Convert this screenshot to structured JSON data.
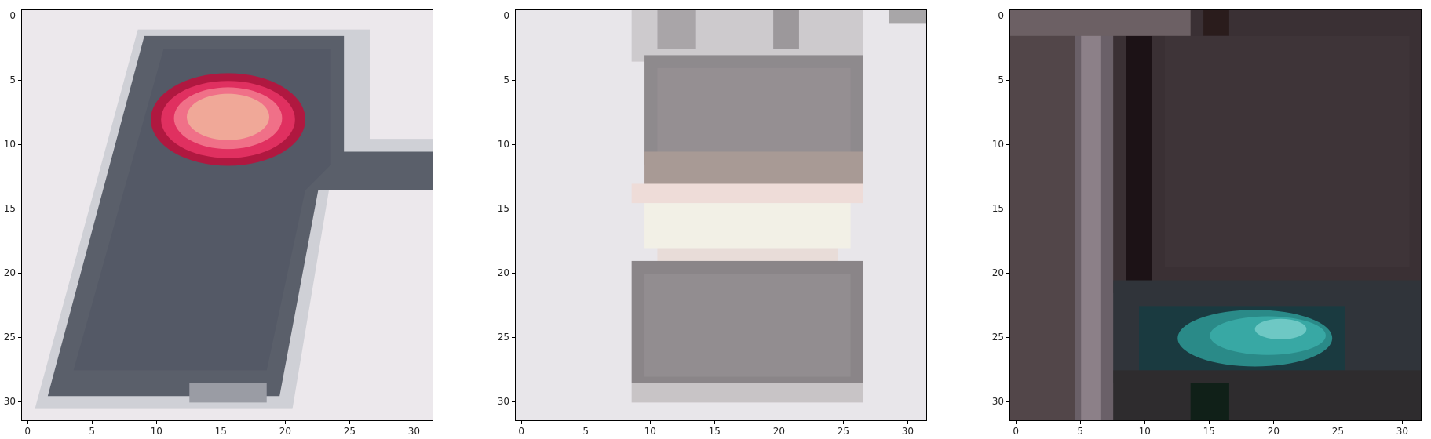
{
  "figure": {
    "panels": [
      {
        "id": "crop-1",
        "subject": "tilted gray box with red oval light"
      },
      {
        "id": "crop-2",
        "subject": "gray box with light horizontal band"
      },
      {
        "id": "crop-3",
        "subject": "dark scene with teal light element"
      }
    ],
    "axes": {
      "x_ticks": [
        "0",
        "5",
        "10",
        "15",
        "20",
        "25",
        "30"
      ],
      "y_ticks": [
        "0",
        "5",
        "10",
        "15",
        "20",
        "25",
        "30"
      ],
      "range": [
        0,
        31
      ]
    }
  },
  "colors": {
    "red_light": "#d02050",
    "red_core": "#f0a0a0",
    "gray_box": "#5a5f6a",
    "light_bg": "#ece8ec",
    "teal_light": "#30a8a0",
    "dark_bg": "#3a3034"
  }
}
